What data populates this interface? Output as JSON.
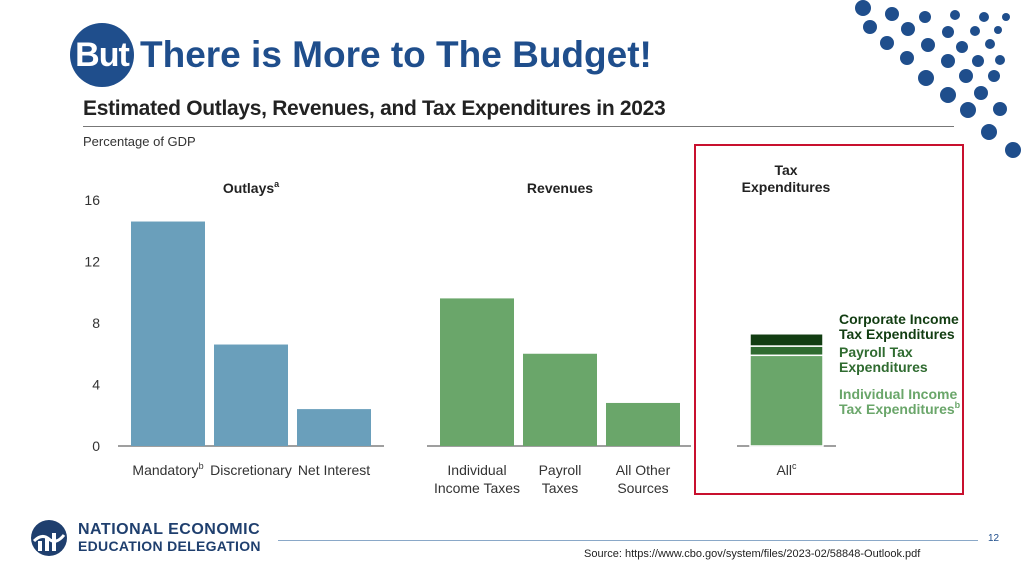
{
  "slide": {
    "badge": "But",
    "title": "There is More to The Budget!",
    "page_number": "12",
    "source": "Source: https://www.cbo.gov/system/files/2023-02/58848-Outlook.pdf"
  },
  "logo": {
    "line1": "NATIONAL ECONOMIC",
    "line2": "EDUCATION DELEGATION"
  },
  "colors": {
    "brand": "#1f4e8c",
    "outlays": "#6a9fbb",
    "revenues": "#6aa66a",
    "corporate": "#123d12",
    "payroll": "#2f6b30",
    "individual": "#6aa66a",
    "highlight": "#c8102e"
  },
  "chart_data": {
    "type": "bar",
    "title": "Estimated Outlays, Revenues, and Tax Expenditures in 2023",
    "ylabel": "Percentage of GDP",
    "ylim": [
      0,
      16
    ],
    "yticks": [
      "0",
      "4",
      "8",
      "12",
      "16"
    ],
    "groups": [
      {
        "name": "Outlays",
        "sup": "a",
        "bars": [
          {
            "label": "Mandatory",
            "sup": "b",
            "value": 14.6
          },
          {
            "label": "Discretionary",
            "sup": "",
            "value": 6.6
          },
          {
            "label": "Net Interest",
            "sup": "",
            "value": 2.4
          }
        ]
      },
      {
        "name": "Revenues",
        "sup": "",
        "bars": [
          {
            "label": "Individual\nIncome Taxes",
            "sup": "",
            "value": 9.6
          },
          {
            "label": "Payroll\nTaxes",
            "sup": "",
            "value": 6.0
          },
          {
            "label": "All Other\nSources",
            "sup": "",
            "value": 2.8
          }
        ]
      },
      {
        "name": "Tax\nExpenditures",
        "sup": "",
        "stacked": true,
        "label": "All",
        "label_sup": "c",
        "segments": [
          {
            "name": "Individual Income\nTax Expenditures",
            "sup": "b",
            "value": 5.9
          },
          {
            "name": "Payroll Tax\nExpenditures",
            "sup": "",
            "value": 0.6
          },
          {
            "name": "Corporate Income\nTax Expenditures",
            "sup": "",
            "value": 0.8
          }
        ]
      }
    ]
  }
}
